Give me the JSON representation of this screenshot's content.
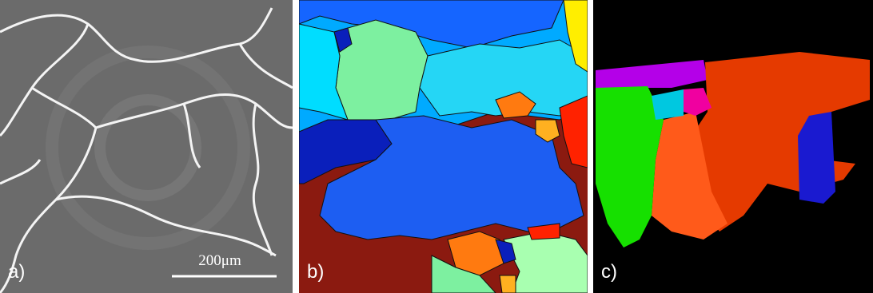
{
  "panels": [
    {
      "label": "a)",
      "scale_bar": "200μm"
    },
    {
      "label": "b)"
    },
    {
      "label": "c)"
    }
  ]
}
